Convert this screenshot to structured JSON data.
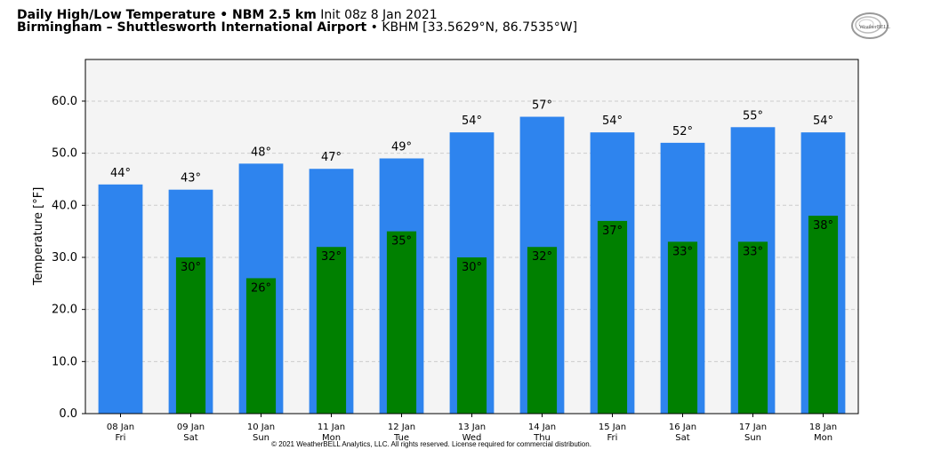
{
  "header": {
    "title_bold": "Daily High/Low Temperature • NBM 2.5 km",
    "title_normal": "Init 08z 8 Jan 2021",
    "location_bold": "Birmingham – Shuttlesworth International Airport",
    "location_normal": "• KBHM [33.5629°N, 86.7535°W]"
  },
  "logo": {
    "text": "WeatherBELL"
  },
  "copyright": "© 2021 WeatherBELL Analytics, LLC. All rights reserved. License required for commercial distribution.",
  "colors": {
    "high": "#2e84ee",
    "low": "#008000",
    "plot_bg": "#f4f4f4"
  },
  "chart_data": {
    "type": "bar",
    "ylabel": "Temperature [°F]",
    "ylim": [
      0,
      68
    ],
    "yticks": [
      0,
      10,
      20,
      30,
      40,
      50,
      60
    ],
    "grid": true,
    "categories": [
      {
        "date": "08 Jan",
        "day": "Fri"
      },
      {
        "date": "09 Jan",
        "day": "Sat"
      },
      {
        "date": "10 Jan",
        "day": "Sun"
      },
      {
        "date": "11 Jan",
        "day": "Mon"
      },
      {
        "date": "12 Jan",
        "day": "Tue"
      },
      {
        "date": "13 Jan",
        "day": "Wed"
      },
      {
        "date": "14 Jan",
        "day": "Thu"
      },
      {
        "date": "15 Jan",
        "day": "Fri"
      },
      {
        "date": "16 Jan",
        "day": "Sat"
      },
      {
        "date": "17 Jan",
        "day": "Sun"
      },
      {
        "date": "18 Jan",
        "day": "Mon"
      }
    ],
    "series": [
      {
        "key": "high",
        "values": [
          44,
          43,
          48,
          47,
          49,
          54,
          57,
          54,
          52,
          55,
          54
        ]
      },
      {
        "key": "low",
        "values": [
          null,
          30,
          26,
          32,
          35,
          30,
          32,
          37,
          33,
          33,
          38
        ]
      }
    ]
  }
}
